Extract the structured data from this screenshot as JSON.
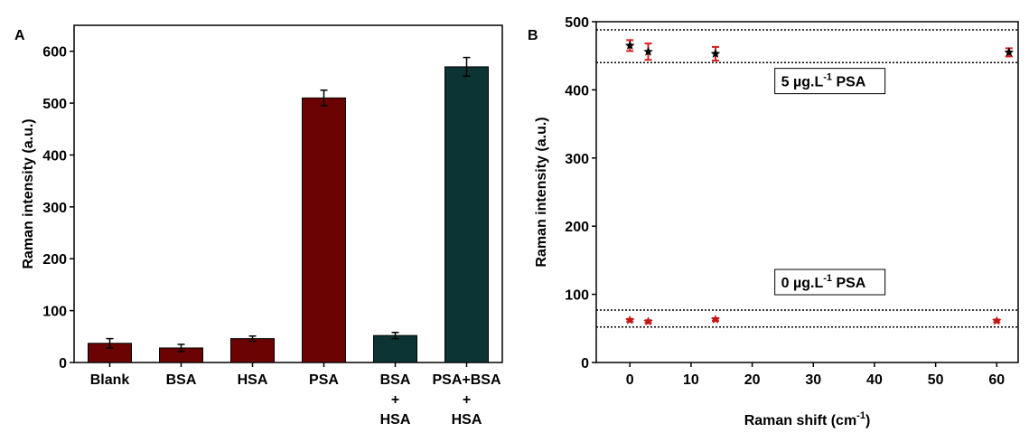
{
  "chart_data": [
    {
      "type": "bar",
      "panel_label": "A",
      "ylabel": "Raman intensity  (a.u.)",
      "categories": [
        [
          "Blank"
        ],
        [
          "BSA"
        ],
        [
          "HSA"
        ],
        [
          "PSA"
        ],
        [
          "BSA",
          "+",
          "HSA"
        ],
        [
          "PSA+BSA",
          "+",
          "HSA"
        ]
      ],
      "values": [
        37,
        28,
        46,
        510,
        52,
        570
      ],
      "errors": [
        9,
        7,
        5,
        15,
        6,
        18
      ],
      "colors": [
        "#6b0303",
        "#6b0303",
        "#6b0303",
        "#6b0303",
        "#0c3434",
        "#0c3434"
      ],
      "ylim": [
        0,
        650
      ],
      "yticks": [
        0,
        100,
        200,
        300,
        400,
        500,
        600
      ]
    },
    {
      "type": "scatter",
      "panel_label": "B",
      "ylabel": "Raman intensity (a.u.)",
      "xlabel": {
        "text": "Raman shift (cm",
        "sup": "-1",
        "after": ")"
      },
      "series": [
        {
          "color": "#000000",
          "marker": "star",
          "error_color": "#d42020",
          "x": [
            0,
            3,
            14,
            62
          ],
          "values": [
            465,
            456,
            453,
            455
          ],
          "errors": [
            8,
            12,
            10,
            6
          ]
        },
        {
          "color": "#c01818",
          "marker": "star",
          "error_color": "#d42020",
          "x": [
            0,
            3,
            14,
            60
          ],
          "values": [
            62,
            60,
            63,
            61
          ],
          "errors": [
            2,
            2,
            2,
            2
          ]
        }
      ],
      "hlines": [
        488,
        440,
        77,
        52
      ],
      "annotations": [
        {
          "text": "5 µg.L",
          "sup": "-1",
          "after": " PSA",
          "x": 24,
          "y": 405
        },
        {
          "text": "0 µg.L",
          "sup": "-1",
          "after": " PSA",
          "x": 24,
          "y": 110
        }
      ],
      "xlim": [
        -5.5,
        63.5
      ],
      "xticks": [
        0,
        10,
        20,
        30,
        40,
        50,
        60
      ],
      "ylim": [
        0,
        500
      ],
      "yticks": [
        0,
        100,
        200,
        300,
        400,
        500
      ]
    }
  ]
}
